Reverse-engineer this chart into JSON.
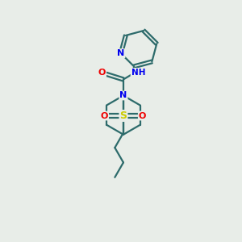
{
  "bg_color": "#e8ede8",
  "bond_color": "#2d6b6b",
  "N_color": "#0000ee",
  "O_color": "#ee0000",
  "S_color": "#cccc00",
  "line_width": 1.6,
  "figsize": [
    3.0,
    3.0
  ],
  "dpi": 100,
  "xlim": [
    0,
    10
  ],
  "ylim": [
    0,
    10
  ]
}
